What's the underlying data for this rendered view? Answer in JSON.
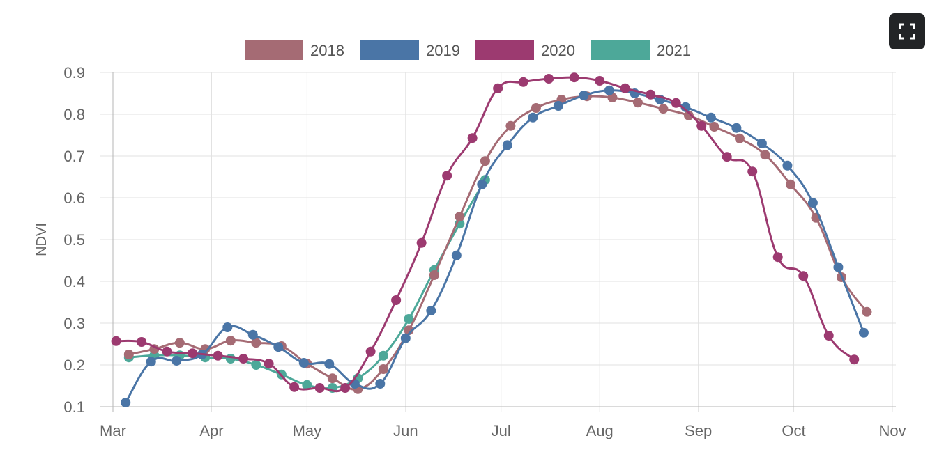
{
  "toolbar": {
    "fullscreen_icon": "expand-icon"
  },
  "colors": {
    "2018": "#a56b74",
    "2019": "#4a75a6",
    "2020": "#9c3a70",
    "2021": "#4da899",
    "grid": "#e1e1e1",
    "axis": "#b5b5b5",
    "tick_text": "#666666",
    "button_bg": "#222426"
  },
  "chart_data": {
    "type": "line",
    "title": "",
    "xlabel": "",
    "ylabel": "NDVI",
    "ylim": [
      0.1,
      0.9
    ],
    "y_ticks": [
      "0.1",
      "0.2",
      "0.3",
      "0.4",
      "0.5",
      "0.6",
      "0.7",
      "0.8",
      "0.9"
    ],
    "x_ticks": [
      "Mar",
      "Apr",
      "May",
      "Jun",
      "Jul",
      "Aug",
      "Sep",
      "Oct",
      "Nov"
    ],
    "grid": true,
    "legend_position": "top",
    "series": [
      {
        "name": "2018",
        "color": "#a56b74",
        "x": [
          "03-06",
          "03-14",
          "03-22",
          "03-30",
          "04-07",
          "04-15",
          "04-23",
          "05-01",
          "05-09",
          "05-17",
          "05-25",
          "06-02",
          "06-10",
          "06-18",
          "06-26",
          "07-04",
          "07-12",
          "07-20",
          "07-28",
          "08-05",
          "08-13",
          "08-21",
          "08-29",
          "09-06",
          "09-14",
          "09-22",
          "09-30",
          "10-08",
          "10-16",
          "10-24"
        ],
        "y": [
          0.225,
          0.238,
          0.253,
          0.238,
          0.258,
          0.253,
          0.245,
          0.203,
          0.168,
          0.142,
          0.19,
          0.283,
          0.415,
          0.555,
          0.688,
          0.772,
          0.815,
          0.835,
          0.843,
          0.84,
          0.828,
          0.813,
          0.797,
          0.77,
          0.742,
          0.703,
          0.632,
          0.552,
          0.41,
          0.327
        ]
      },
      {
        "name": "2019",
        "color": "#4a75a6",
        "x": [
          "03-05",
          "03-13",
          "03-21",
          "03-29",
          "04-06",
          "04-14",
          "04-22",
          "04-30",
          "05-08",
          "05-16",
          "05-24",
          "06-01",
          "06-09",
          "06-17",
          "06-25",
          "07-03",
          "07-11",
          "07-19",
          "07-27",
          "08-04",
          "08-12",
          "08-20",
          "08-28",
          "09-05",
          "09-13",
          "09-21",
          "09-29",
          "10-07",
          "10-15",
          "10-23"
        ],
        "y": [
          0.11,
          0.208,
          0.21,
          0.225,
          0.29,
          0.272,
          0.243,
          0.205,
          0.202,
          0.155,
          0.155,
          0.264,
          0.33,
          0.462,
          0.632,
          0.726,
          0.792,
          0.82,
          0.845,
          0.857,
          0.85,
          0.835,
          0.817,
          0.792,
          0.767,
          0.73,
          0.677,
          0.588,
          0.434,
          0.277
        ]
      },
      {
        "name": "2020",
        "color": "#9c3a70",
        "x": [
          "03-02",
          "03-10",
          "03-18",
          "03-26",
          "04-03",
          "04-11",
          "04-19",
          "04-27",
          "05-05",
          "05-13",
          "05-21",
          "05-29",
          "06-06",
          "06-14",
          "06-22",
          "06-30",
          "07-08",
          "07-16",
          "07-24",
          "08-01",
          "08-09",
          "08-17",
          "08-25",
          "09-02",
          "09-10",
          "09-18",
          "09-26",
          "10-04",
          "10-12",
          "10-20"
        ],
        "y": [
          0.257,
          0.255,
          0.232,
          0.228,
          0.222,
          0.215,
          0.203,
          0.147,
          0.145,
          0.145,
          0.232,
          0.355,
          0.492,
          0.653,
          0.743,
          0.862,
          0.877,
          0.885,
          0.888,
          0.88,
          0.862,
          0.847,
          0.827,
          0.772,
          0.698,
          0.663,
          0.458,
          0.413,
          0.27,
          0.213
        ]
      },
      {
        "name": "2021",
        "color": "#4da899",
        "x": [
          "03-06",
          "03-14",
          "03-22",
          "03-30",
          "04-07",
          "04-15",
          "04-23",
          "05-01",
          "05-09",
          "05-17",
          "05-25",
          "06-02",
          "06-10",
          "06-18",
          "06-26"
        ],
        "y": [
          0.218,
          0.223,
          0.223,
          0.218,
          0.215,
          0.2,
          0.177,
          0.152,
          0.145,
          0.168,
          0.222,
          0.31,
          0.427,
          0.538,
          0.643
        ]
      }
    ]
  }
}
